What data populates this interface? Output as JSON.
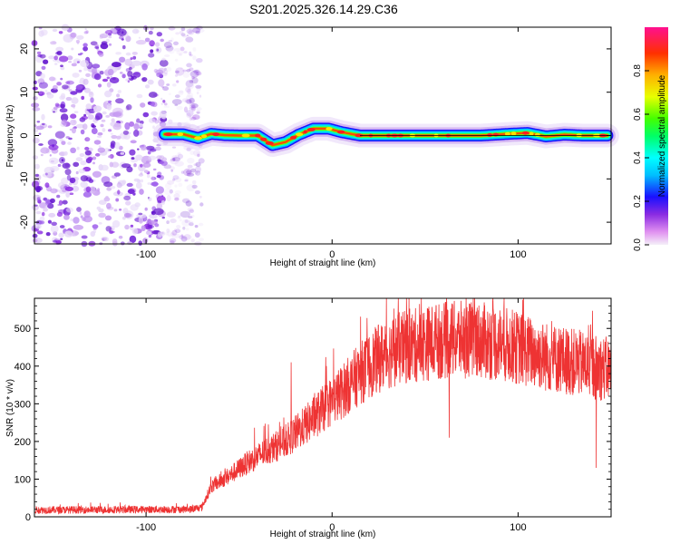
{
  "title": "S201.2025.326.14.29.C36",
  "chart_data": [
    {
      "type": "heatmap",
      "xlabel": "Height of straight line (km)",
      "ylabel": "Frequency (Hz)",
      "xlim": [
        -160,
        150
      ],
      "ylim": [
        -25,
        25
      ],
      "xticks": [
        {
          "value": -100,
          "label": "-100"
        },
        {
          "value": 0,
          "label": "0"
        },
        {
          "value": 100,
          "label": "100"
        }
      ],
      "yticks": [
        {
          "value": -20,
          "label": "-20"
        },
        {
          "value": -10,
          "label": "-10"
        },
        {
          "value": 0,
          "label": "0"
        },
        {
          "value": 10,
          "label": "10"
        },
        {
          "value": 20,
          "label": "20"
        }
      ],
      "noise_region_x": [
        -160,
        -75
      ],
      "ridge": {
        "x": [
          -90,
          -80,
          -72,
          -65,
          -58,
          -50,
          -40,
          -32,
          -25,
          -18,
          -10,
          -2,
          5,
          15,
          30,
          60,
          80,
          95,
          105,
          115,
          125,
          135,
          148
        ],
        "freq": [
          0.3,
          0.3,
          -0.6,
          0.4,
          0.1,
          0.0,
          0.0,
          -2.2,
          -1.5,
          0.2,
          1.6,
          1.6,
          0.8,
          0.0,
          0.0,
          0.0,
          0.0,
          0.4,
          0.6,
          -0.2,
          0.2,
          0.0,
          0.0
        ]
      },
      "colorbar": {
        "label": "Normalized spectral amplitude",
        "range": [
          0,
          1
        ],
        "ticks": [
          {
            "value": 0.0,
            "label": "0.0"
          },
          {
            "value": 0.2,
            "label": "0.2"
          },
          {
            "value": 0.4,
            "label": "0.4"
          },
          {
            "value": 0.6,
            "label": "0.6"
          },
          {
            "value": 0.8,
            "label": "0.8"
          }
        ]
      }
    },
    {
      "type": "line",
      "xlabel": "Height of straight line (km)",
      "ylabel": "SNR (10 * v/v)",
      "xlim": [
        -160,
        150
      ],
      "ylim": [
        0,
        580
      ],
      "xticks": [
        {
          "value": -100,
          "label": "-100"
        },
        {
          "value": 0,
          "label": "0"
        },
        {
          "value": 100,
          "label": "100"
        }
      ],
      "yticks": [
        {
          "value": 0,
          "label": "0"
        },
        {
          "value": 100,
          "label": "100"
        },
        {
          "value": 200,
          "label": "200"
        },
        {
          "value": 300,
          "label": "300"
        },
        {
          "value": 400,
          "label": "400"
        },
        {
          "value": 500,
          "label": "500"
        }
      ],
      "series": [
        {
          "name": "SNR",
          "color": "#ee3333",
          "envelope": {
            "x": [
              -160,
              -75,
              -70,
              -65,
              -55,
              -45,
              -35,
              -25,
              -15,
              -5,
              5,
              15,
              25,
              35,
              45,
              55,
              65,
              75,
              85,
              95,
              105,
              115,
              125,
              135,
              150
            ],
            "mean": [
              18,
              20,
              25,
              80,
              110,
              145,
              175,
              200,
              240,
              285,
              330,
              380,
              420,
              445,
              455,
              465,
              470,
              470,
              465,
              455,
              440,
              425,
              415,
              405,
              390
            ]
          },
          "spikes": [
            {
              "x": -22,
              "y": 410
            },
            {
              "x": 40,
              "y": 580
            },
            {
              "x": 47,
              "y": 565
            },
            {
              "x": 56,
              "y": 560
            },
            {
              "x": 62,
              "y": 550
            },
            {
              "x": 78,
              "y": 555
            },
            {
              "x": 63,
              "y": 210
            },
            {
              "x": 142,
              "y": 130
            }
          ]
        }
      ]
    }
  ]
}
